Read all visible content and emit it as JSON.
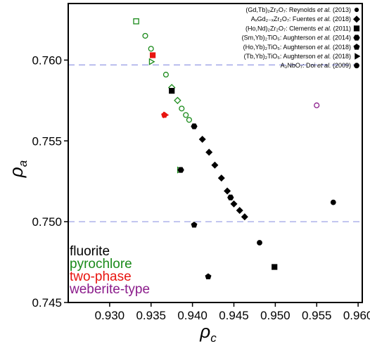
{
  "chart_data": {
    "type": "scatter",
    "xlabel": "ρc",
    "ylabel": "ρa",
    "xlim": [
      0.925,
      0.9605
    ],
    "ylim": [
      0.745,
      0.7635
    ],
    "xticks": [
      0.93,
      0.935,
      0.94,
      0.945,
      0.95,
      0.955,
      0.96
    ],
    "xtick_labels": [
      "0.930",
      "0.935",
      "0.940",
      "0.945",
      "0.950",
      "0.955",
      "0.960"
    ],
    "yticks": [
      0.745,
      0.75,
      0.755,
      0.76
    ],
    "ytick_labels": [
      "0.745",
      "0.750",
      "0.755",
      "0.760"
    ],
    "reference_lines_y": [
      0.75,
      0.7597
    ],
    "reference_line_color": "#9ea3e6",
    "legend": {
      "placement": "top-right",
      "entries": [
        {
          "label": "(Gd,Tb)₂Zr₂O₇: Reynolds et al. (2013)",
          "marker": "circle-small"
        },
        {
          "label": "AₓGd₂₋ₓZr₂O₇: Fuentes et al. (2018)",
          "marker": "diamond"
        },
        {
          "label": "(Ho,Nd)₂Zr₂O₇: Clements et al. (2011)",
          "marker": "square"
        },
        {
          "label": "(Sm,Yb)₂TiO₅: Aughterson et al. (2014)",
          "marker": "hexagon"
        },
        {
          "label": "(Ho,Yb)₂TiO₅: Aughterson et al. (2018)",
          "marker": "pentagon"
        },
        {
          "label": "(Tb,Yb)₂TiO₅: Aughterson et al. (2018)",
          "marker": "triangle-right"
        },
        {
          "label": "A₃NbO₇: Doi et al. (2009)",
          "marker": "circle"
        }
      ]
    },
    "categories": [
      {
        "name": "fluorite",
        "color": "#000000",
        "filled": true
      },
      {
        "name": "pyrochlore",
        "color": "#1a8a1a",
        "filled": false
      },
      {
        "name": "two-phase",
        "color": "#e8140f",
        "filled": true
      },
      {
        "name": "weberite-type",
        "color": "#8b1c8b",
        "filled": false
      }
    ],
    "points": [
      {
        "x": 0.9332,
        "y": 0.7624,
        "marker": "square",
        "category": "pyrochlore"
      },
      {
        "x": 0.9343,
        "y": 0.7615,
        "marker": "circle",
        "category": "pyrochlore"
      },
      {
        "x": 0.935,
        "y": 0.7607,
        "marker": "circle",
        "category": "pyrochlore"
      },
      {
        "x": 0.9352,
        "y": 0.7603,
        "marker": "square",
        "category": "two-phase"
      },
      {
        "x": 0.935,
        "y": 0.7599,
        "marker": "triangle-right",
        "category": "pyrochlore"
      },
      {
        "x": 0.9368,
        "y": 0.7591,
        "marker": "circle",
        "category": "pyrochlore"
      },
      {
        "x": 0.9375,
        "y": 0.7583,
        "marker": "diamond",
        "category": "pyrochlore"
      },
      {
        "x": 0.9375,
        "y": 0.7581,
        "marker": "square",
        "category": "fluorite"
      },
      {
        "x": 0.9382,
        "y": 0.7575,
        "marker": "diamond",
        "category": "pyrochlore"
      },
      {
        "x": 0.9387,
        "y": 0.757,
        "marker": "circle",
        "category": "pyrochlore"
      },
      {
        "x": 0.9392,
        "y": 0.7566,
        "marker": "circle",
        "category": "pyrochlore"
      },
      {
        "x": 0.9396,
        "y": 0.7563,
        "marker": "circle",
        "category": "pyrochlore"
      },
      {
        "x": 0.9366,
        "y": 0.7566,
        "marker": "pentagon",
        "category": "two-phase"
      },
      {
        "x": 0.9367,
        "y": 0.7566,
        "marker": "triangle-right",
        "category": "two-phase"
      },
      {
        "x": 0.9402,
        "y": 0.7559,
        "marker": "hexagon",
        "category": "fluorite"
      },
      {
        "x": 0.9412,
        "y": 0.7551,
        "marker": "diamond",
        "category": "fluorite"
      },
      {
        "x": 0.942,
        "y": 0.7543,
        "marker": "diamond",
        "category": "fluorite"
      },
      {
        "x": 0.9427,
        "y": 0.7535,
        "marker": "diamond",
        "category": "fluorite"
      },
      {
        "x": 0.9384,
        "y": 0.7532,
        "marker": "triangle-right",
        "category": "pyrochlore"
      },
      {
        "x": 0.9386,
        "y": 0.7532,
        "marker": "hexagon",
        "category": "fluorite"
      },
      {
        "x": 0.9435,
        "y": 0.7527,
        "marker": "diamond",
        "category": "fluorite"
      },
      {
        "x": 0.9442,
        "y": 0.7519,
        "marker": "diamond",
        "category": "fluorite"
      },
      {
        "x": 0.9446,
        "y": 0.7515,
        "marker": "hexagon",
        "category": "fluorite"
      },
      {
        "x": 0.945,
        "y": 0.7511,
        "marker": "diamond",
        "category": "fluorite"
      },
      {
        "x": 0.9457,
        "y": 0.7507,
        "marker": "diamond",
        "category": "fluorite"
      },
      {
        "x": 0.9463,
        "y": 0.7503,
        "marker": "diamond",
        "category": "fluorite"
      },
      {
        "x": 0.9402,
        "y": 0.7498,
        "marker": "pentagon",
        "category": "fluorite"
      },
      {
        "x": 0.955,
        "y": 0.7572,
        "marker": "circle",
        "category": "weberite-type"
      },
      {
        "x": 0.957,
        "y": 0.7512,
        "marker": "circle",
        "category": "fluorite"
      },
      {
        "x": 0.9481,
        "y": 0.7487,
        "marker": "circle",
        "category": "fluorite"
      },
      {
        "x": 0.9499,
        "y": 0.7472,
        "marker": "square",
        "category": "fluorite"
      },
      {
        "x": 0.9419,
        "y": 0.7466,
        "marker": "pentagon",
        "category": "fluorite"
      }
    ]
  }
}
